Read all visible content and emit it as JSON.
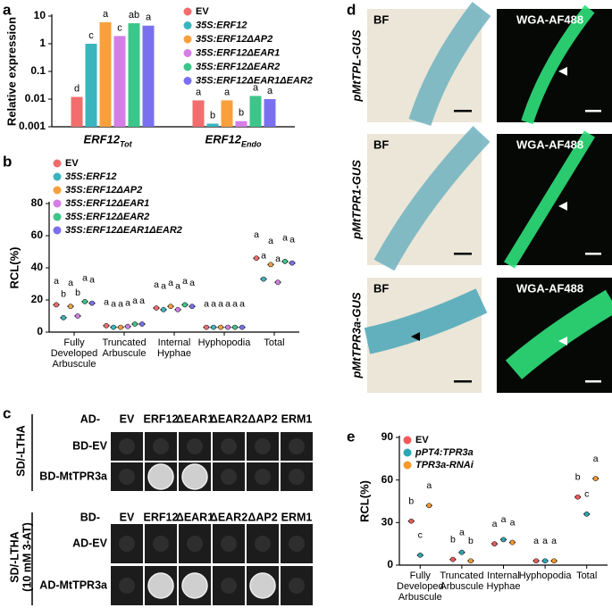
{
  "panel_labels": [
    "a",
    "b",
    "c",
    "d",
    "e"
  ],
  "chart_data": [
    {
      "type": "bar",
      "ylabel": "Relative expression",
      "log_scale": true,
      "categories": [
        "ERF12",
        "ERF12"
      ],
      "category_subscripts": [
        "Tot",
        "Endo"
      ],
      "ylim": [
        0.001,
        10
      ],
      "yticks": [
        0.001,
        0.01,
        0.1,
        1,
        10
      ],
      "series": [
        {
          "name": "EV",
          "color": "#f26d6d",
          "values": [
            0.012,
            0.009
          ],
          "letters": [
            "d",
            "a"
          ]
        },
        {
          "name": "35S:ERF12",
          "color": "#3ab5bd",
          "values": [
            1.0,
            0.0013
          ],
          "letters": [
            "c",
            "b"
          ]
        },
        {
          "name": "35S:ERF12ΔAP2",
          "color": "#f9a03c",
          "values": [
            6,
            0.009
          ],
          "letters": [
            "a",
            "a"
          ]
        },
        {
          "name": "35S:ERF12ΔEAR1",
          "color": "#d47ee6",
          "values": [
            1.9,
            0.0016
          ],
          "letters": [
            "c",
            "b"
          ]
        },
        {
          "name": "35S:ERF12ΔEAR2",
          "color": "#3cc68a",
          "values": [
            5.5,
            0.013
          ],
          "letters": [
            "ab",
            "a"
          ]
        },
        {
          "name": "35S:ERF12ΔEAR1ΔEAR2",
          "color": "#7a70ef",
          "values": [
            4.5,
            0.01
          ],
          "letters": [
            "a",
            "a"
          ]
        }
      ]
    },
    {
      "type": "dot",
      "ylabel": "RCL(%)",
      "categories": [
        "Fully Developed Arbuscule",
        "Truncated Arbuscule",
        "Internal Hyphae",
        "Hyphopodia",
        "Total"
      ],
      "ylim": [
        0,
        80
      ],
      "yticks": [
        0,
        20,
        40,
        60,
        80
      ],
      "series": [
        {
          "name": "EV",
          "color": "#f26d6d",
          "values": [
            17,
            4,
            15,
            3,
            46
          ],
          "letters": [
            "a",
            "a",
            "a",
            "a",
            "a"
          ]
        },
        {
          "name": "35S:ERF12",
          "color": "#3ab5bd",
          "values": [
            9,
            3,
            14,
            3,
            33
          ],
          "letters": [
            "b",
            "a",
            "a",
            "a",
            "a"
          ]
        },
        {
          "name": "35S:ERF12ΔAP2",
          "color": "#f9a03c",
          "values": [
            16,
            3,
            16,
            3,
            42
          ],
          "letters": [
            "a",
            "a",
            "a",
            "a",
            "a"
          ]
        },
        {
          "name": "35S:ERF12ΔEAR1",
          "color": "#d47ee6",
          "values": [
            10,
            3.5,
            14,
            3,
            31
          ],
          "letters": [
            "b",
            "a",
            "a",
            "a",
            "a"
          ]
        },
        {
          "name": "35S:ERF12ΔEAR2",
          "color": "#3cc68a",
          "values": [
            19,
            5,
            17,
            3,
            44
          ],
          "letters": [
            "a",
            "a",
            "a",
            "a",
            "a"
          ]
        },
        {
          "name": "35S:ERF12ΔEAR1ΔEAR2",
          "color": "#7a70ef",
          "values": [
            18,
            5,
            16,
            3,
            43
          ],
          "letters": [
            "a",
            "a",
            "a",
            "a",
            "a"
          ]
        }
      ]
    },
    {
      "type": "dot",
      "ylabel": "RCL(%)",
      "categories": [
        "Fully Developed Arbuscule",
        "Truncated Arbuscule",
        "Internal Hyphae",
        "Hyphopodia",
        "Total"
      ],
      "ylim": [
        0,
        90
      ],
      "yticks": [
        0,
        30,
        60,
        90
      ],
      "series": [
        {
          "name": "EV",
          "color": "#f0585a",
          "values": [
            31,
            4,
            15,
            3,
            48
          ],
          "letters": [
            "b",
            "b",
            "a",
            "a",
            "b"
          ]
        },
        {
          "name": "pPT4:TPR3a",
          "color": "#2aa8b4",
          "values": [
            7,
            9,
            18,
            3,
            36
          ],
          "letters": [
            "c",
            "a",
            "a",
            "a",
            "c"
          ]
        },
        {
          "name": "TPR3a-RNAi",
          "color": "#f99a2c",
          "values": [
            42,
            3,
            16,
            3,
            61
          ],
          "letters": [
            "a",
            "b",
            "a",
            "a",
            "a"
          ]
        }
      ]
    }
  ],
  "yeast_assay": [
    {
      "medium": [
        "SD/-LTHA"
      ],
      "column_prefix": "AD-",
      "columns": [
        "EV",
        "ERF12",
        "ΔEAR1",
        "ΔEAR2",
        "ΔAP2",
        "ERM1"
      ],
      "rows": [
        "BD-EV",
        "BD-MtTPR3a"
      ]
    },
    {
      "medium": [
        "SD/-LTHA",
        "(10 mM 3-AT)"
      ],
      "column_prefix": "BD-",
      "columns": [
        "EV",
        "ERF12",
        "ΔEAR1",
        "ΔEAR2",
        "ΔAP2",
        "ERM1"
      ],
      "rows": [
        "AD-EV",
        "AD-MtTPR3a"
      ]
    }
  ],
  "microscopy": {
    "rows": [
      "pMtTPL-GUS",
      "pMtTPR1-GUS",
      "pMtTPR3a-GUS"
    ],
    "columns": [
      "BF",
      "WGA-AF488"
    ]
  }
}
